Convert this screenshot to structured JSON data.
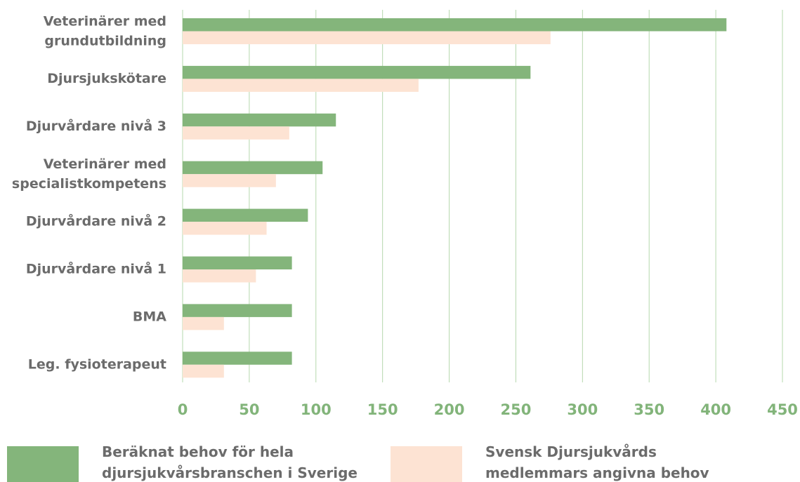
{
  "chart_data": {
    "type": "bar",
    "categories": [
      "Veterinärer med\ngrundutbildning",
      "Djursjukskötare",
      "Djurvårdare nivå 3",
      "Veterinärer med\nspecialistkompetens",
      "Djurvårdare nivå 2",
      "Djurvårdare nivå 1",
      "BMA",
      "Leg. fysioterapeut"
    ],
    "series": [
      {
        "name": "Beräknat behov för hela\ndjursjukvårsbranschen i Sverige",
        "color": "#84b57b",
        "values": [
          408,
          261,
          115,
          105,
          94,
          82,
          82,
          82
        ]
      },
      {
        "name": "Svensk Djursjukvårds\nmedlemmars angivna behov",
        "color": "#fde3d3",
        "values": [
          276,
          177,
          80,
          70,
          63,
          55,
          31,
          31
        ]
      }
    ],
    "xlim": [
      0,
      450
    ],
    "xticks": [
      0,
      50,
      100,
      150,
      200,
      250,
      300,
      350,
      400,
      450
    ],
    "grid": true,
    "orientation": "horizontal",
    "legend": "bottom"
  }
}
